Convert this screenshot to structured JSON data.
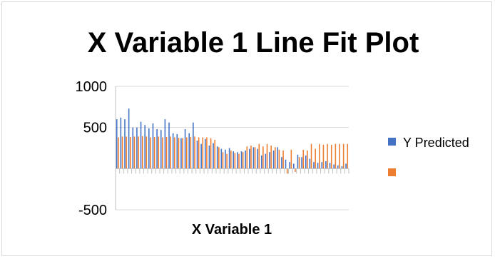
{
  "chart_data": {
    "type": "bar",
    "title": "X Variable 1 Line Fit Plot",
    "xlabel": "X Variable 1",
    "ylabel": "",
    "ylim": [
      -500,
      1000
    ],
    "yticks": [
      "-500",
      "500",
      "1000"
    ],
    "grid": true,
    "legend_position": "right",
    "series": [
      {
        "name": "Y Predicted",
        "color": "#4472C4",
        "values": [
          600,
          620,
          600,
          730,
          500,
          500,
          570,
          530,
          490,
          550,
          480,
          470,
          600,
          560,
          430,
          420,
          370,
          480,
          430,
          560,
          340,
          300,
          360,
          280,
          310,
          270,
          240,
          230,
          250,
          210,
          200,
          210,
          220,
          240,
          260,
          240,
          160,
          180,
          200,
          220,
          260,
          140,
          110,
          80,
          60,
          170,
          140,
          160,
          120,
          80,
          70,
          80,
          90,
          70,
          50,
          40,
          30,
          60
        ]
      },
      {
        "name": "",
        "color": "#ED7D31",
        "values": [
          380,
          390,
          390,
          385,
          390,
          390,
          395,
          390,
          380,
          385,
          390,
          380,
          385,
          390,
          380,
          375,
          370,
          380,
          385,
          390,
          380,
          380,
          380,
          370,
          350,
          260,
          200,
          180,
          220,
          190,
          180,
          200,
          270,
          280,
          260,
          300,
          270,
          300,
          280,
          260,
          230,
          220,
          -60,
          230,
          -40,
          140,
          230,
          220,
          300,
          240,
          300,
          290,
          300,
          290,
          300,
          300,
          300,
          300
        ]
      }
    ]
  }
}
